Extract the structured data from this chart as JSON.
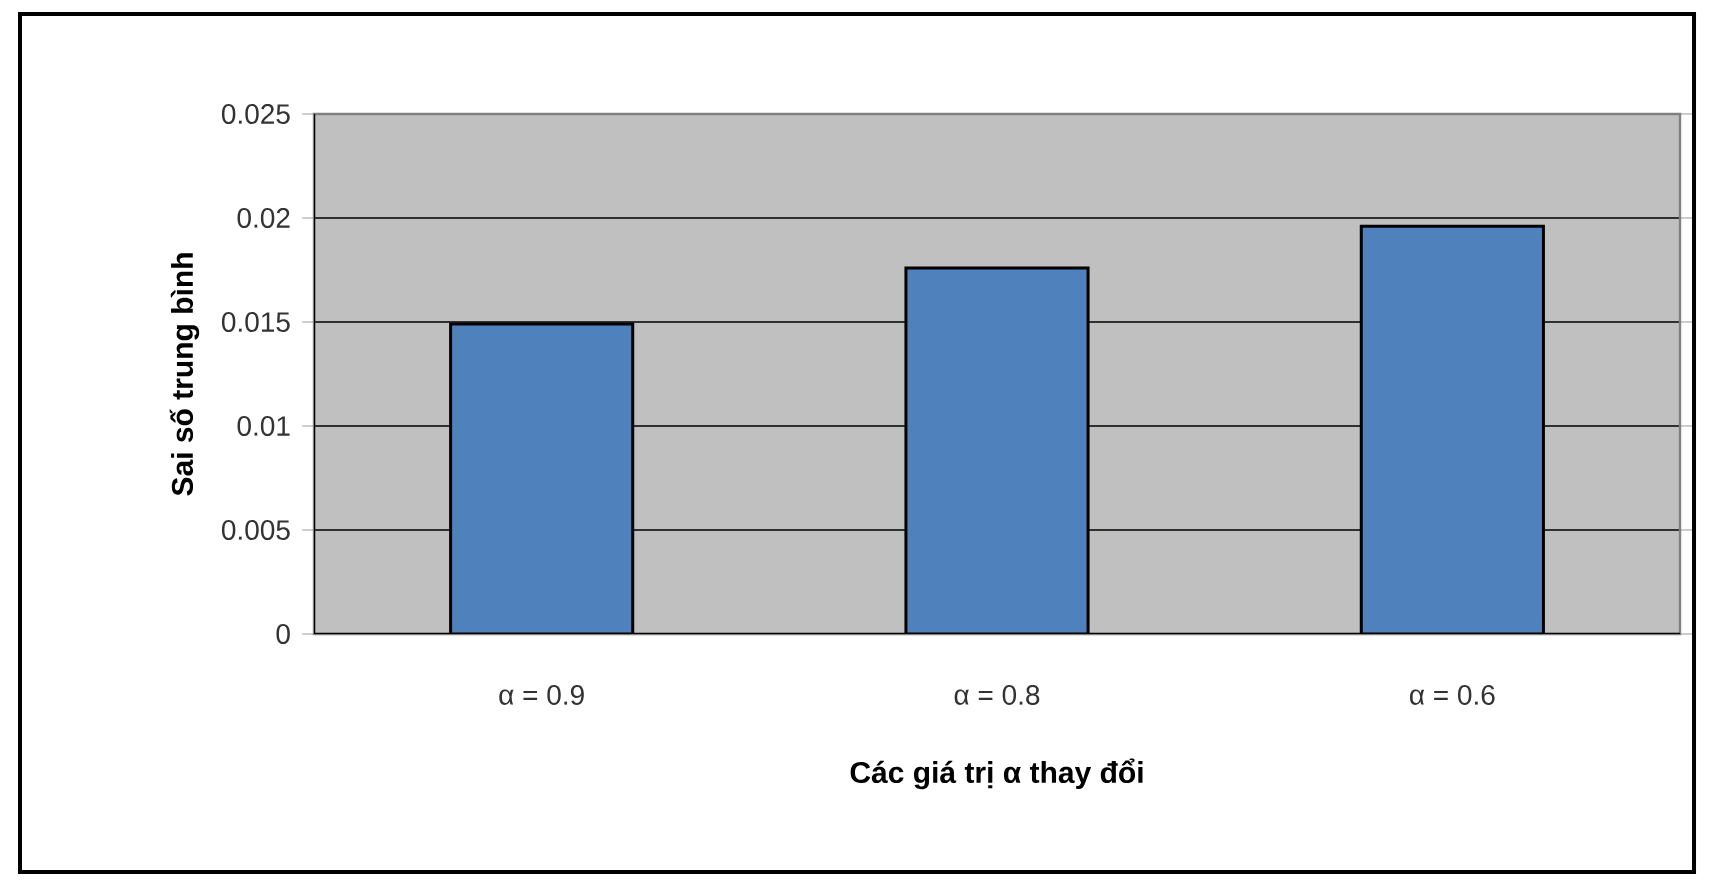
{
  "chart_data": {
    "type": "bar",
    "xlabel": "Các giá trị α thay đổi",
    "ylabel": "Sai số trung bình",
    "categories": [
      "α = 0.9",
      "α = 0.8",
      "α = 0.6"
    ],
    "values": [
      0.0149,
      0.0176,
      0.0196
    ],
    "color": "#4f81bd",
    "ylim": [
      0,
      0.025
    ],
    "yticks": [
      0,
      0.005,
      0.01,
      0.015,
      0.02,
      0.025
    ],
    "grid": "y"
  }
}
